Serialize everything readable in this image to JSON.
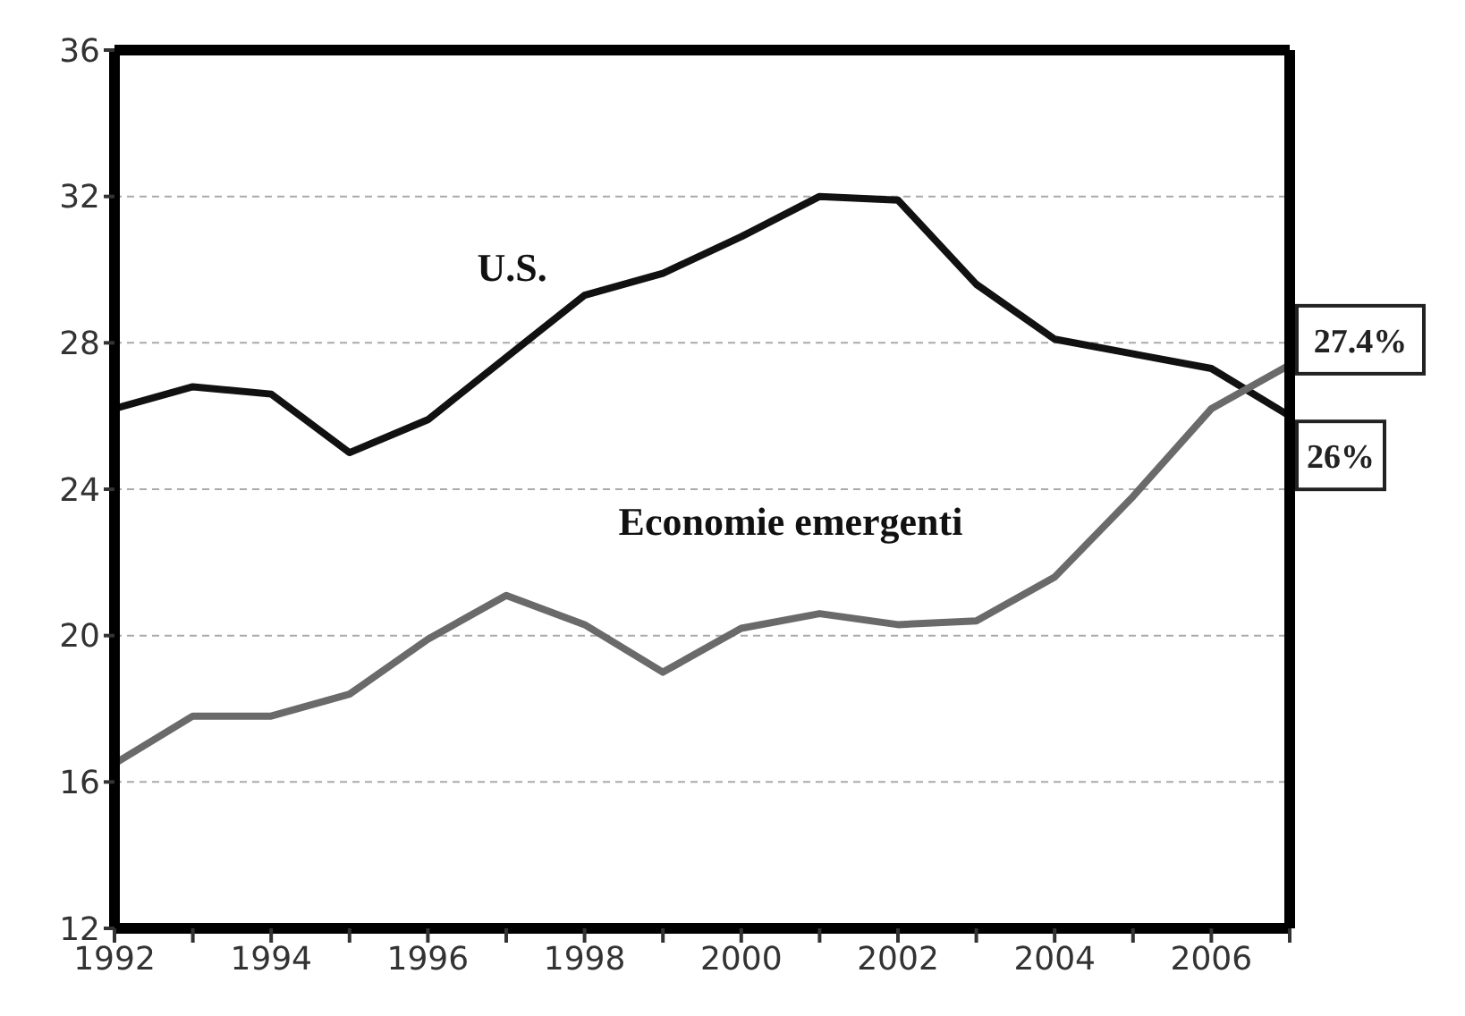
{
  "chart_data": {
    "type": "line",
    "x": [
      1992,
      1993,
      1994,
      1995,
      1996,
      1997,
      1998,
      1999,
      2000,
      2001,
      2002,
      2003,
      2004,
      2005,
      2006,
      2007
    ],
    "series": [
      {
        "name": "U.S.",
        "color": "#111111",
        "values": [
          26.2,
          26.8,
          26.6,
          25.0,
          25.9,
          27.6,
          29.3,
          29.9,
          30.9,
          32.0,
          31.9,
          29.6,
          28.1,
          27.7,
          27.3,
          26
        ],
        "value_labels": [
          null,
          null,
          null,
          null,
          null,
          null,
          null,
          null,
          null,
          null,
          null,
          null,
          null,
          null,
          null,
          "26%"
        ]
      },
      {
        "name": "Economie emergenti",
        "color": "#6a6a6a",
        "values": [
          16.5,
          17.8,
          17.8,
          18.4,
          19.9,
          21.1,
          20.3,
          19.0,
          20.2,
          20.6,
          20.3,
          20.4,
          21.6,
          23.8,
          26.2,
          27.4
        ],
        "value_labels": [
          null,
          null,
          null,
          null,
          null,
          null,
          null,
          null,
          null,
          null,
          null,
          null,
          null,
          null,
          null,
          "27.4%"
        ]
      }
    ],
    "xlim": [
      1992,
      2007
    ],
    "xticks": [
      1992,
      {
        "value": 1993,
        "label": null
      },
      1994,
      {
        "value": 1995,
        "label": null
      },
      1996,
      {
        "value": 1997,
        "label": null
      },
      1998,
      {
        "value": 1999,
        "label": null
      },
      2000,
      {
        "value": 2001,
        "label": null
      },
      2002,
      {
        "value": 2003,
        "label": null
      },
      2004,
      {
        "value": 2005,
        "label": null
      },
      2006,
      {
        "value": 2007,
        "label": null
      }
    ],
    "ylim": [
      12,
      36
    ],
    "yticks": [
      12,
      16,
      20,
      24,
      28,
      32,
      36
    ],
    "grid": "y",
    "legend": false,
    "marker": "none",
    "line_style": "solid"
  }
}
